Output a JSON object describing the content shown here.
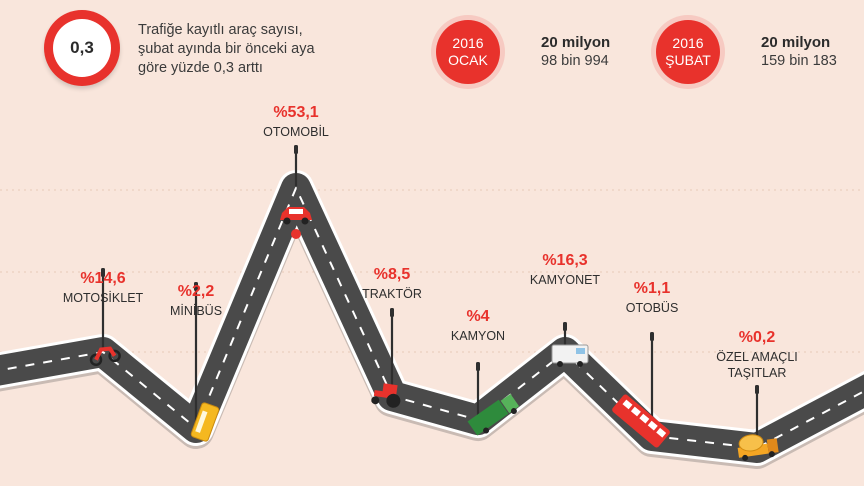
{
  "header": {
    "rate_value": "0,3",
    "summary_lines": [
      "Trafiğe kayıtlı araç sayısı,",
      "şubat ayında bir önceki aya",
      "göre yüzde 0,3 arttı"
    ],
    "months": [
      {
        "year": "2016",
        "month": "OCAK",
        "count_line1": "20 milyon",
        "count_line2": "98 bin 994"
      },
      {
        "year": "2016",
        "month": "ŞUBAT",
        "count_line1": "20 milyon",
        "count_line2": "159 bin 183"
      }
    ]
  },
  "colors": {
    "background": "#f9e6dc",
    "accent": "#e8322c",
    "road": "#4a4a4a",
    "road_edge": "#ffffff"
  },
  "chart_data": {
    "type": "line",
    "unit": "%",
    "categories": [
      "MOTOSİKLET",
      "MİNİBÜS",
      "OTOMOBİL",
      "TRAKTÖR",
      "KAMYON",
      "KAMYONET",
      "OTOBÜS",
      "ÖZEL AMAÇLI TAŞITLAR"
    ],
    "category_label_lines": [
      [
        "MOTOSİKLET"
      ],
      [
        "MİNİBÜS"
      ],
      [
        "OTOMOBİL"
      ],
      [
        "TRAKTÖR"
      ],
      [
        "KAMYON"
      ],
      [
        "KAMYONET"
      ],
      [
        "OTOBÜS"
      ],
      [
        "ÖZEL AMAÇLI",
        "TAŞITLAR"
      ]
    ],
    "values": [
      14.6,
      2.2,
      53.1,
      8.5,
      4,
      16.3,
      1.1,
      0.2
    ],
    "value_labels": [
      "%14,6",
      "%2,2",
      "%53,1",
      "%8,5",
      "%4",
      "%16,3",
      "%1,1",
      "%0,2"
    ],
    "icons": [
      "motorcycle-icon",
      "minibus-icon",
      "car-icon",
      "tractor-icon",
      "truck-icon",
      "van-icon",
      "bus-icon",
      "concrete-mixer-icon"
    ]
  }
}
